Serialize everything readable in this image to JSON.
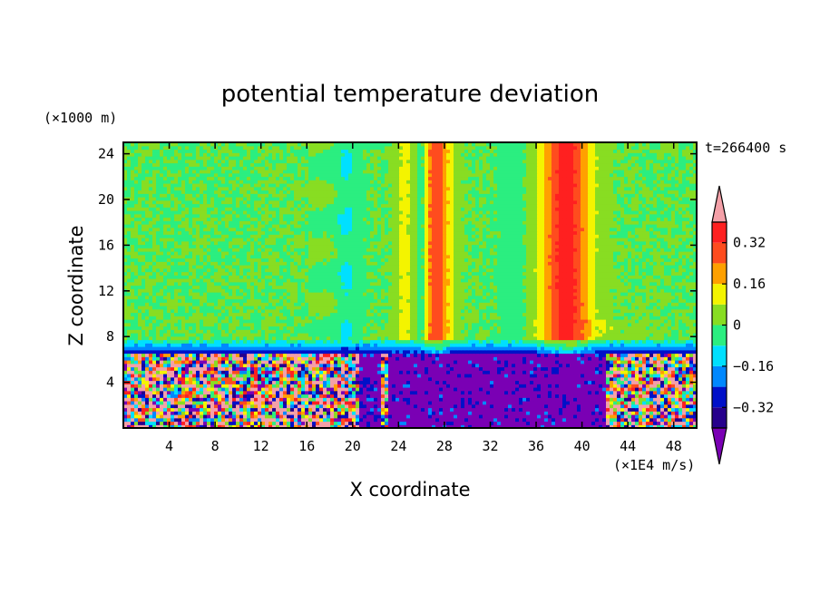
{
  "chart_data": {
    "type": "heatmap",
    "title": "potential temperature deviation",
    "xlabel": "X coordinate",
    "ylabel": "Z coordinate",
    "x_unit": "(×1E4 m/s)",
    "y_unit": "(×1000 m)",
    "time_label": "t=266400 s",
    "xlim": [
      0,
      50
    ],
    "ylim": [
      0,
      25
    ],
    "xticks": [
      4,
      8,
      12,
      16,
      20,
      24,
      28,
      32,
      36,
      40,
      44,
      48
    ],
    "yticks": [
      4,
      8,
      12,
      16,
      20,
      24
    ],
    "colorbar": {
      "levels": [
        -0.4,
        -0.32,
        -0.24,
        -0.16,
        -0.08,
        0,
        0.08,
        0.16,
        0.24,
        0.32,
        0.4
      ],
      "tick_labels": [
        "0.32",
        "0.16",
        "0",
        "−0.16",
        "−0.32"
      ],
      "tick_values": [
        0.32,
        0.16,
        0,
        -0.16,
        -0.32
      ],
      "colors": [
        "#7a00b4",
        "#26008c",
        "#0010c8",
        "#0088ff",
        "#00e0ff",
        "#2bee80",
        "#88dd22",
        "#f4f400",
        "#ffa000",
        "#ff4c1e",
        "#ff2020",
        "#f4a0a8"
      ]
    }
  }
}
